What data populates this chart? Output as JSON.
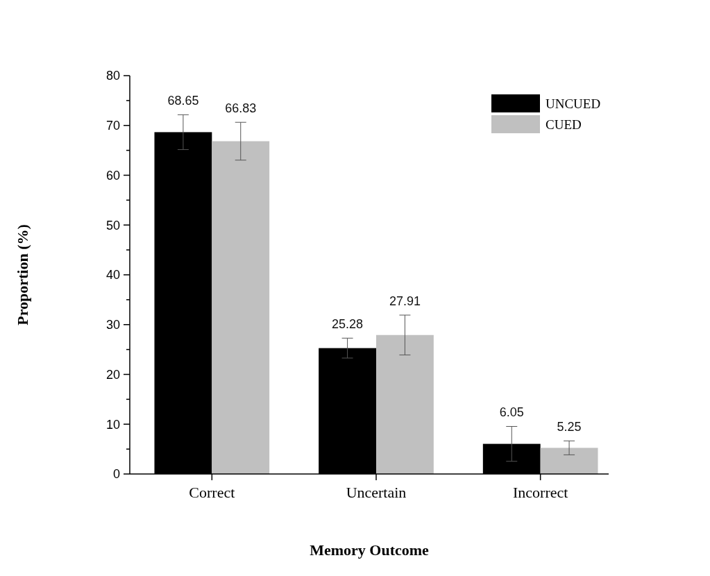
{
  "chart_data": {
    "type": "bar",
    "xlabel": "Memory Outcome",
    "ylabel": "Proportion (%)",
    "categories": [
      "Correct",
      "Uncertain",
      "Incorrect"
    ],
    "series": [
      {
        "name": "UNCUED",
        "color": "#000000",
        "values": [
          68.65,
          25.28,
          6.05
        ],
        "errors": [
          3.5,
          2.0,
          3.5
        ]
      },
      {
        "name": "CUED",
        "color": "#c0c0c0",
        "values": [
          66.83,
          27.91,
          5.25
        ],
        "errors": [
          3.8,
          4.0,
          1.4
        ]
      }
    ],
    "ylim": [
      0,
      80
    ],
    "yticks": [
      0,
      {
        "value": 5,
        "label": null
      },
      10,
      {
        "value": 15,
        "label": null
      },
      20,
      {
        "value": 25,
        "label": null
      },
      30,
      {
        "value": 35,
        "label": null
      },
      40,
      {
        "value": 45,
        "label": null
      },
      50,
      {
        "value": 55,
        "label": null
      },
      60,
      {
        "value": 65,
        "label": null
      },
      70,
      {
        "value": 75,
        "label": null
      },
      80
    ],
    "data_labels": true,
    "legend": "top right",
    "grid": false
  }
}
